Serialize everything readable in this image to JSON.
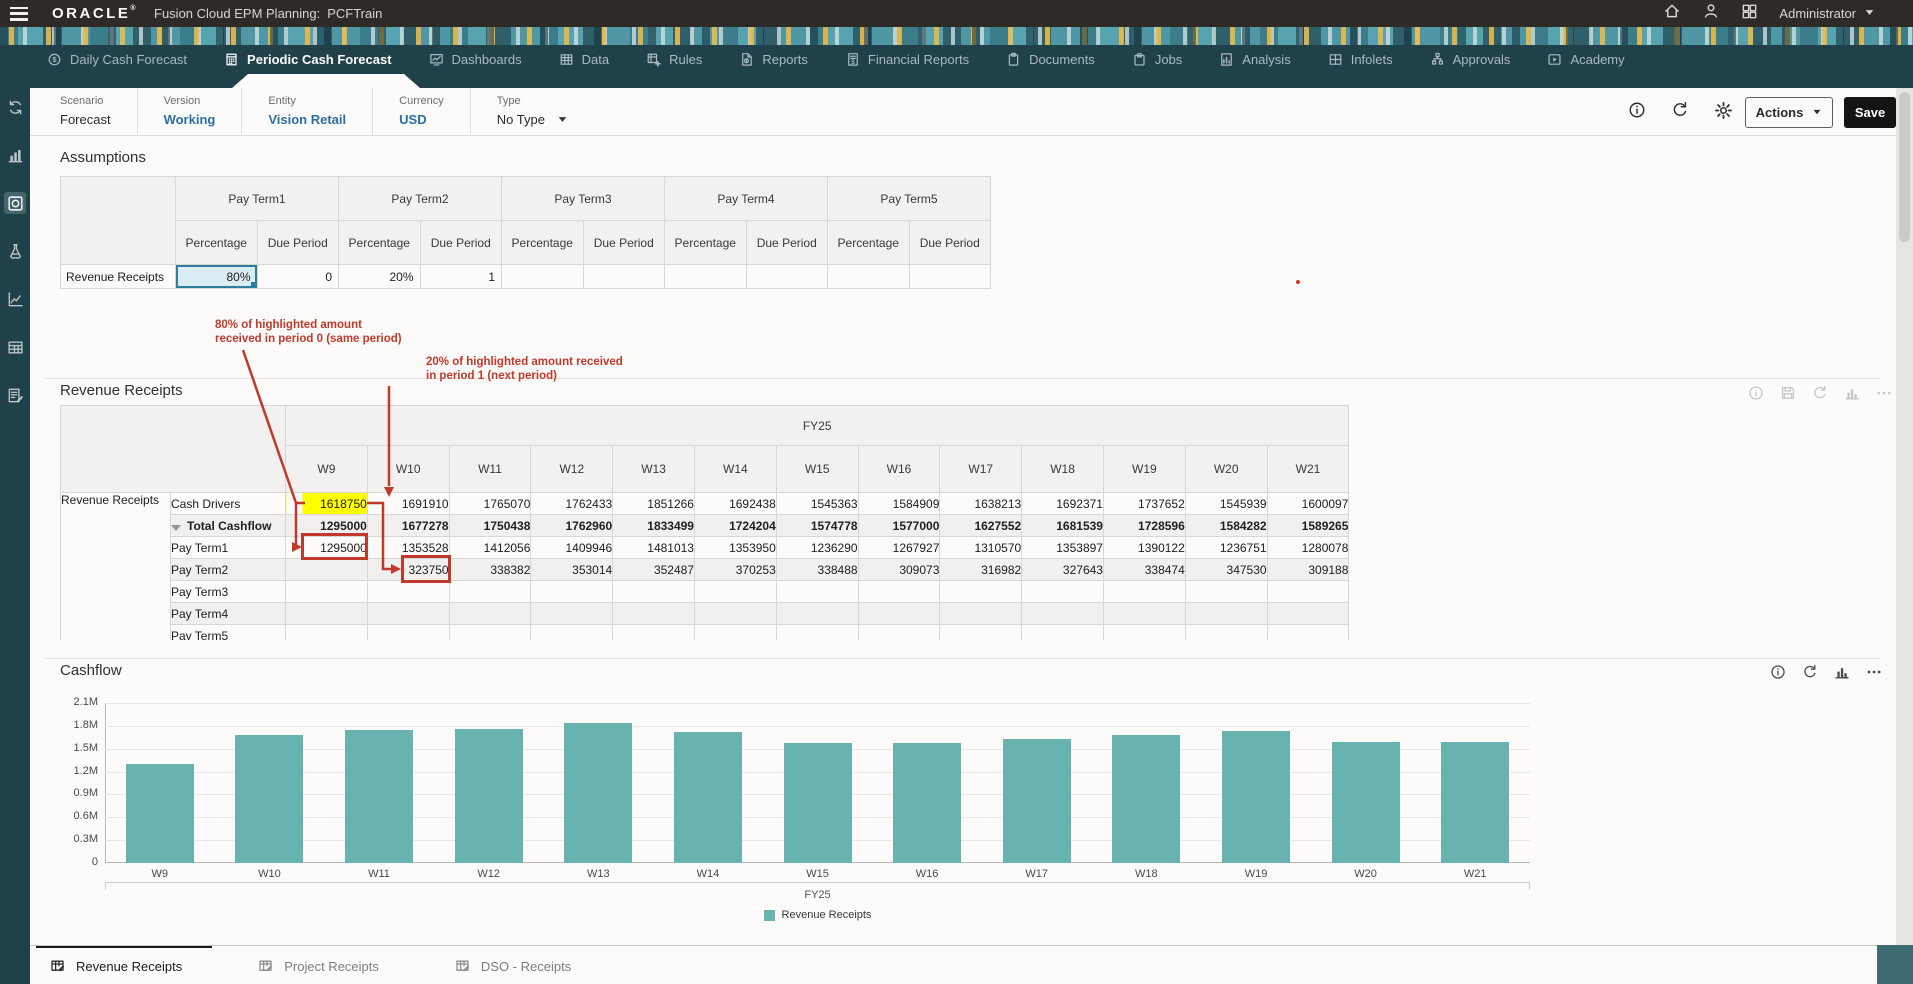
{
  "topbar": {
    "brand": "ORACLE",
    "brand_mark": "®",
    "title": "Fusion Cloud EPM Planning:",
    "env": "PCFTrain",
    "user": "Administrator"
  },
  "nav": {
    "tabs": [
      {
        "label": "Daily Cash Forecast",
        "icon": "cash-clock-icon",
        "active": false
      },
      {
        "label": "Periodic Cash Forecast",
        "icon": "periodic-forecast-icon",
        "active": true
      },
      {
        "label": "Dashboards",
        "icon": "dashboards-icon",
        "active": false
      },
      {
        "label": "Data",
        "icon": "data-icon",
        "active": false
      },
      {
        "label": "Rules",
        "icon": "rules-icon",
        "active": false
      },
      {
        "label": "Reports",
        "icon": "reports-icon",
        "active": false
      },
      {
        "label": "Financial Reports",
        "icon": "financial-reports-icon",
        "active": false
      },
      {
        "label": "Documents",
        "icon": "documents-icon",
        "active": false
      },
      {
        "label": "Jobs",
        "icon": "jobs-icon",
        "active": false
      },
      {
        "label": "Analysis",
        "icon": "analysis-icon",
        "active": false
      },
      {
        "label": "Infolets",
        "icon": "infolets-icon",
        "active": false
      },
      {
        "label": "Approvals",
        "icon": "approvals-icon",
        "active": false
      },
      {
        "label": "Academy",
        "icon": "academy-icon",
        "active": false
      }
    ]
  },
  "sidebar": {
    "items": [
      {
        "icon": "exchange-icon",
        "active": false
      },
      {
        "icon": "bar-chart-icon",
        "active": false
      },
      {
        "icon": "dashboard-tile-icon",
        "active": true
      },
      {
        "icon": "lab-flask-icon",
        "active": false
      },
      {
        "icon": "trend-chart-icon",
        "active": false
      },
      {
        "icon": "data-table-icon",
        "active": false
      },
      {
        "icon": "form-edit-icon",
        "active": false
      }
    ]
  },
  "pov": {
    "dims": [
      {
        "label": "Scenario",
        "value": "Forecast",
        "link": false,
        "dropdown": false
      },
      {
        "label": "Version",
        "value": "Working",
        "link": true,
        "dropdown": false
      },
      {
        "label": "Entity",
        "value": "Vision Retail",
        "link": true,
        "dropdown": false
      },
      {
        "label": "Currency",
        "value": "USD",
        "link": true,
        "dropdown": false
      },
      {
        "label": "Type",
        "value": "No Type",
        "link": false,
        "dropdown": true
      }
    ],
    "actions_label": "Actions",
    "save_label": "Save"
  },
  "assumptions": {
    "title": "Assumptions",
    "groups": [
      "Pay Term1",
      "Pay Term2",
      "Pay Term3",
      "Pay Term4",
      "Pay Term5"
    ],
    "sub_headers": [
      "Percentage",
      "Due Period"
    ],
    "row_label": "Revenue Receipts",
    "values": [
      "80%",
      "0",
      "20%",
      "1",
      "",
      "",
      "",
      "",
      "",
      ""
    ],
    "selected_cell_index": 0
  },
  "annotations": {
    "note1": [
      "80% of highlighted amount",
      "received in period 0 (same period)"
    ],
    "note2": [
      "20% of highlighted amount received",
      "in period 1 (next period)"
    ],
    "highlighted_cell": {
      "row": "Cash Drivers",
      "column": "W9",
      "value": 1618750,
      "color": "#ffff00"
    },
    "boxed_cells": [
      {
        "row": "Pay Term1",
        "column": "W9",
        "value": 1295000
      },
      {
        "row": "Pay Term2",
        "column": "W10",
        "value": 323750
      }
    ],
    "red": "#c0392b"
  },
  "grid": {
    "title": "Revenue Receipts",
    "year": "FY25",
    "row_group_label": "Revenue Receipts",
    "weeks": [
      "W9",
      "W10",
      "W11",
      "W12",
      "W13",
      "W14",
      "W15",
      "W16",
      "W17",
      "W18",
      "W19",
      "W20",
      "W21"
    ],
    "rows": [
      {
        "label": "Cash Drivers",
        "bold": false,
        "indent": 0,
        "collapse": false,
        "values": [
          1618750,
          1691910,
          1765070,
          1762433,
          1851266,
          1692438,
          1545363,
          1584909,
          1638213,
          1692371,
          1737652,
          1545939,
          1600097
        ]
      },
      {
        "label": "Total Cashflow",
        "bold": true,
        "indent": 1,
        "collapse": true,
        "values": [
          1295000,
          1677278,
          1750438,
          1762960,
          1833499,
          1724204,
          1574778,
          1577000,
          1627552,
          1681539,
          1728596,
          1584282,
          1589265
        ]
      },
      {
        "label": "Pay Term1",
        "bold": false,
        "indent": 2,
        "collapse": false,
        "values": [
          1295000,
          1353528,
          1412056,
          1409946,
          1481013,
          1353950,
          1236290,
          1267927,
          1310570,
          1353897,
          1390122,
          1236751,
          1280078
        ]
      },
      {
        "label": "Pay Term2",
        "bold": false,
        "indent": 2,
        "collapse": false,
        "values": [
          "",
          323750,
          338382,
          353014,
          352487,
          370253,
          338488,
          309073,
          316982,
          327643,
          338474,
          347530,
          309188
        ]
      },
      {
        "label": "Pay Term3",
        "bold": false,
        "indent": 2,
        "collapse": false,
        "values": [
          "",
          "",
          "",
          "",
          "",
          "",
          "",
          "",
          "",
          "",
          "",
          "",
          ""
        ]
      },
      {
        "label": "Pay Term4",
        "bold": false,
        "indent": 2,
        "collapse": false,
        "values": [
          "",
          "",
          "",
          "",
          "",
          "",
          "",
          "",
          "",
          "",
          "",
          "",
          ""
        ]
      },
      {
        "label": "Pay Term5",
        "bold": false,
        "indent": 2,
        "collapse": false,
        "values": [
          "",
          "",
          "",
          "",
          "",
          "",
          "",
          "",
          "",
          "",
          "",
          "",
          ""
        ]
      }
    ],
    "toolbar_icons": [
      "info-icon",
      "save-icon",
      "refresh-icon",
      "chart-icon",
      "more-icon"
    ]
  },
  "chart_data": {
    "type": "bar",
    "title": "Cashflow",
    "categories": [
      "W9",
      "W10",
      "W11",
      "W12",
      "W13",
      "W14",
      "W15",
      "W16",
      "W17",
      "W18",
      "W19",
      "W20",
      "W21"
    ],
    "series": [
      {
        "name": "Revenue Receipts",
        "values": [
          1295000,
          1677278,
          1750438,
          1762960,
          1833499,
          1724204,
          1574778,
          1577000,
          1627552,
          1681539,
          1728596,
          1584282,
          1589265
        ]
      }
    ],
    "xlabel": "FY25",
    "ylabel": "",
    "ylim": [
      0,
      2100000
    ],
    "ytick_step": 300000,
    "ytick_labels": [
      "0",
      "0.3M",
      "0.6M",
      "0.9M",
      "1.2M",
      "1.5M",
      "1.8M",
      "2.1M"
    ],
    "grid": true,
    "legend_position": "bottom",
    "bar_color": "#68b3b0",
    "toolbar_icons": [
      "info-icon",
      "refresh-icon",
      "chart-icon",
      "more-icon"
    ]
  },
  "bottom_tabs": [
    {
      "label": "Revenue Receipts",
      "icon": "form-grid-icon",
      "active": true
    },
    {
      "label": "Project Receipts",
      "icon": "form-grid-icon",
      "active": false
    },
    {
      "label": "DSO - Receipts",
      "icon": "form-grid-icon",
      "active": false
    }
  ],
  "colors": {
    "accent_teal": "#68b3b0",
    "nav_dark": "#20404a",
    "highlight_yellow": "#ffff00",
    "annotation_red": "#c0392b",
    "link_blue": "#2d6e9e"
  }
}
